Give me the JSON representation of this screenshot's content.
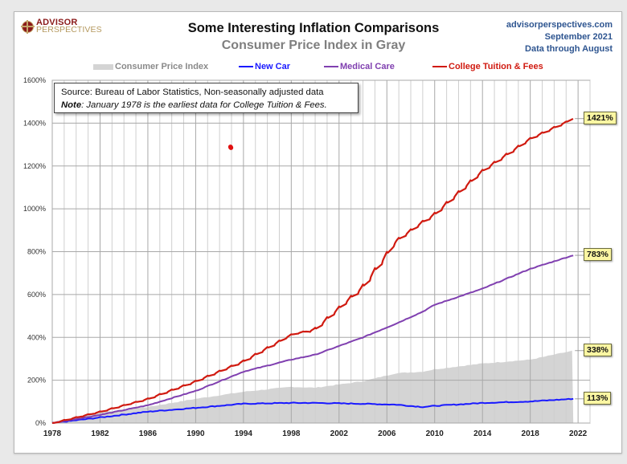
{
  "header": {
    "logo_line1": "ADVISOR",
    "logo_line2": "PERSPECTIVES",
    "site": "advisorperspectives.com",
    "date": "September 2021",
    "data_through": "Data through August"
  },
  "note": {
    "source": "Source: Bureau of Labor Statistics, Non-seasonally adjusted data",
    "note_label": "Note",
    "note_text": ": January  1978 is the earliest data for College Tuition & Fees."
  },
  "chart_data": {
    "type": "line",
    "title": "Some Interesting Inflation Comparisons",
    "subtitle": "Consumer Price Index in Gray",
    "xlabel": "",
    "ylabel": "",
    "xlim": [
      1978,
      2023
    ],
    "ylim": [
      0,
      1600
    ],
    "x_ticks": [
      "1978",
      "1982",
      "1986",
      "1990",
      "1994",
      "1998",
      "2002",
      "2006",
      "2010",
      "2014",
      "2018",
      "2022"
    ],
    "y_ticks": [
      "0%",
      "200%",
      "400%",
      "600%",
      "800%",
      "1000%",
      "1200%",
      "1400%",
      "1600%"
    ],
    "grid": true,
    "legend_position": "top",
    "x": [
      1978,
      1982,
      1986,
      1990,
      1994,
      1998,
      2000,
      2004,
      2006.8,
      2009,
      2010,
      2014,
      2018,
      2021.6
    ],
    "series": [
      {
        "name": "Consumer Price Index",
        "type": "area",
        "color": "#d4d4d4",
        "values": [
          0,
          50,
          75,
          113,
          146,
          169,
          165,
          195,
          233,
          240,
          251,
          278,
          296,
          338
        ],
        "end_label": "338%"
      },
      {
        "name": "New Car",
        "type": "line",
        "color": "#1a1aff",
        "values": [
          0,
          26,
          53,
          71,
          90,
          94,
          94,
          90,
          86,
          75,
          80,
          94,
          101,
          113
        ],
        "end_label": "113%"
      },
      {
        "name": "Medical Care",
        "type": "line",
        "color": "#8040b0",
        "values": [
          0,
          38,
          83,
          150,
          240,
          296,
          319,
          400,
          465,
          520,
          552,
          627,
          720,
          783
        ],
        "end_label": "783%"
      },
      {
        "name": "College Tuition & Fees",
        "type": "line",
        "color": "#d01a10",
        "values": [
          0,
          53,
          113,
          195,
          289,
          413,
          439,
          638,
          852,
          940,
          976,
          1178,
          1328,
          1421
        ],
        "end_label": "1421%"
      }
    ]
  }
}
